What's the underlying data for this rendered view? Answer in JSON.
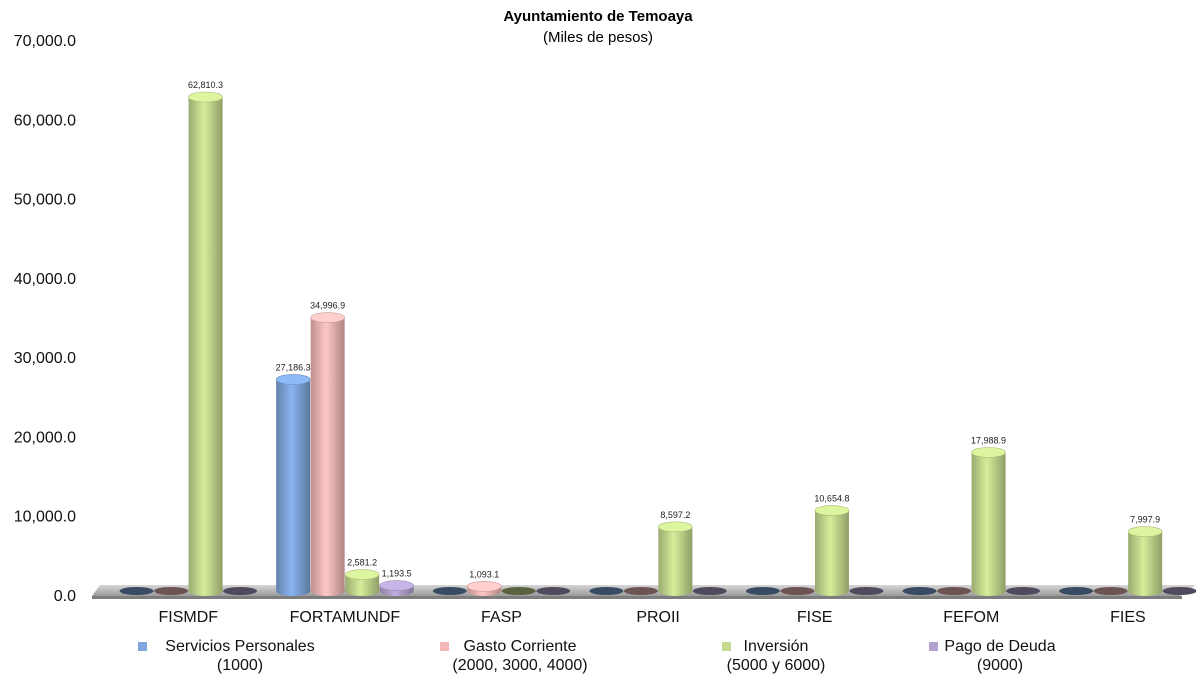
{
  "chart_data": {
    "type": "bar",
    "title": "Ayuntamiento de Temoaya",
    "subtitle": "(Miles de pesos)",
    "categories": [
      "FISMDF",
      "FORTAMUNDF",
      "FASP",
      "PROII",
      "FISE",
      "FEFOM",
      "FIES"
    ],
    "ylim": [
      0,
      70000
    ],
    "yticks": [
      "0.0",
      "10,000.0",
      "20,000.0",
      "30,000.0",
      "40,000.0",
      "50,000.0",
      "60,000.0",
      "70,000.0"
    ],
    "grid": false,
    "legend_position": "bottom",
    "series": [
      {
        "name": "Servicios Personales",
        "name_line2": "(1000)",
        "color": "#7fa7dd",
        "values": [
          0,
          27186.3,
          0,
          0,
          0,
          0,
          0
        ],
        "labels": [
          "",
          "27,186.3",
          "",
          "",
          "",
          "",
          ""
        ]
      },
      {
        "name": "Gasto Corriente",
        "name_line2": "(2000, 3000, 4000)",
        "color": "#f2b9b8",
        "values": [
          0,
          34996.9,
          1093.1,
          0,
          0,
          0,
          0
        ],
        "labels": [
          "",
          "34,996.9",
          "1,093.1",
          "",
          "",
          "",
          ""
        ]
      },
      {
        "name": "Inversión",
        "name_line2": "(5000 y 6000)",
        "color": "#c6db8f",
        "values": [
          62810.3,
          2581.2,
          0,
          8597.2,
          10654.8,
          17988.9,
          7997.9
        ],
        "labels": [
          "62,810.3",
          "2,581.2",
          "",
          "8,597.2",
          "10,654.8",
          "17,988.9",
          "7,997.9"
        ]
      },
      {
        "name": "Pago de Deuda",
        "name_line2": "(9000)",
        "color": "#b3a2cf",
        "values": [
          0,
          1193.5,
          0,
          0,
          0,
          0,
          0
        ],
        "labels": [
          "",
          "1,193.5",
          "",
          "",
          "",
          "",
          ""
        ]
      }
    ]
  }
}
